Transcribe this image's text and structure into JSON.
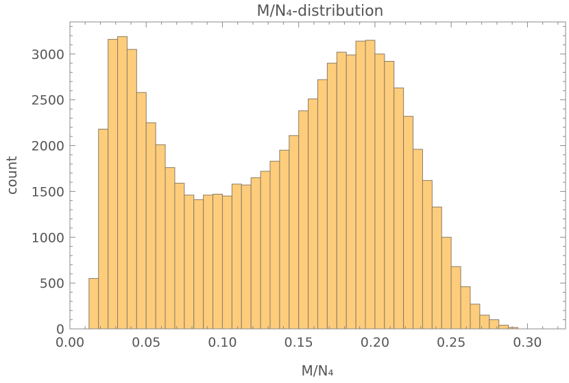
{
  "chart_data": {
    "type": "bar",
    "title": "M/N₄-distribution",
    "xlabel": "M/N₄",
    "ylabel": "count",
    "xlim": [
      0.0,
      0.325
    ],
    "ylim": [
      0,
      3350
    ],
    "bin_width": 0.00625,
    "bin_start": 0.0125,
    "values": [
      550,
      2180,
      3160,
      3190,
      3050,
      2580,
      2250,
      2010,
      1760,
      1590,
      1460,
      1410,
      1460,
      1470,
      1450,
      1580,
      1570,
      1650,
      1720,
      1830,
      1950,
      2110,
      2380,
      2510,
      2720,
      2900,
      3020,
      2990,
      3140,
      3150,
      3000,
      2920,
      2630,
      2320,
      1960,
      1620,
      1330,
      1000,
      680,
      460,
      270,
      150,
      100,
      40,
      15
    ],
    "xticks": [
      "0.00",
      "0.05",
      "0.10",
      "0.15",
      "0.20",
      "0.25",
      "0.30"
    ],
    "xtick_values": [
      0.0,
      0.05,
      0.1,
      0.15,
      0.2,
      0.25,
      0.3
    ],
    "yticks": [
      "0",
      "500",
      "1000",
      "1500",
      "2000",
      "2500",
      "3000"
    ],
    "ytick_values": [
      0,
      500,
      1000,
      1500,
      2000,
      2500,
      3000
    ],
    "grid": false,
    "bar_color": "#fdcd7c",
    "bar_edge_color": "#8a7a62"
  }
}
